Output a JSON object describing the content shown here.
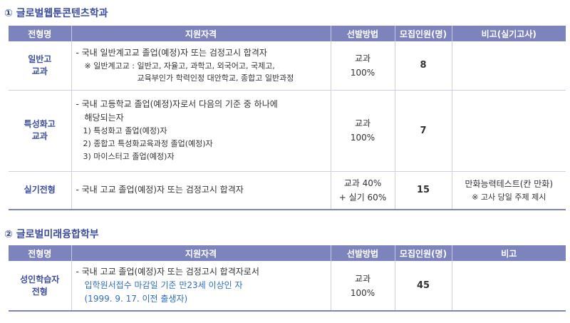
{
  "section1": {
    "title": "① 글로벌웹툰콘텐츠학과",
    "headers": [
      "전형명",
      "지원자격",
      "선발방법",
      "모집인원(명)",
      "비고(실기고사)"
    ],
    "rows": [
      {
        "name": [
          "일반고",
          "교과"
        ],
        "qual_main": "- 국내 일반계고교 졸업(예정)자 또는 검정고시 합격자",
        "qual_note": [
          "※ 일반계고교 : 일반고, 자율고, 과학고, 외국어고, 국제고,",
          "교육부인가 학력인정 대안학교, 종합고 일반과정"
        ],
        "method": [
          "교과",
          "100%"
        ],
        "count": "8",
        "remark": [
          "",
          ""
        ]
      },
      {
        "name": [
          "특성화고",
          "교과"
        ],
        "qual_main": "- 국내 고등학교 졸업(예정)자로서 다음의 기준 중 하나에",
        "qual_main2": "해당되는자",
        "qual_items": [
          "1) 특성화고 졸업(예정)자",
          "2) 종합고 특성화교육과정 졸업(예정)자",
          "3) 마이스터고 졸업(예정)자"
        ],
        "method": [
          "교과",
          "100%"
        ],
        "count": "7",
        "remark": [
          "",
          ""
        ]
      },
      {
        "name": [
          "실기전형"
        ],
        "qual_main": "- 국내 고교 졸업(예정)자 또는 검정고시 합격자",
        "method": [
          "교과 40%",
          "+ 실기 60%"
        ],
        "count": "15",
        "remark": [
          "만화능력테스트(칸 만화)",
          "※ 고사 당일 주제 제시"
        ]
      }
    ]
  },
  "section2": {
    "title": "② 글로벌미래융합학부",
    "headers": [
      "전형명",
      "지원자격",
      "선발방법",
      "모집인원(명)",
      "비고"
    ],
    "rows": [
      {
        "name": [
          "성인학습자",
          "전형"
        ],
        "qual_main": "- 국내 고교 졸업(예정)자 또는 검정고시 합격자로서",
        "qual_blue": [
          "입학원서접수 마감일 기준 만23세 이상인 자",
          "(1999. 9. 17. 이전 출생자)"
        ],
        "method": [
          "교과",
          "100%"
        ],
        "count": "45",
        "remark": [
          ""
        ]
      }
    ]
  },
  "colors": {
    "header_bg": "#7c83bd",
    "title": "#3d4f9e",
    "highlight": "#2f6fc4"
  }
}
